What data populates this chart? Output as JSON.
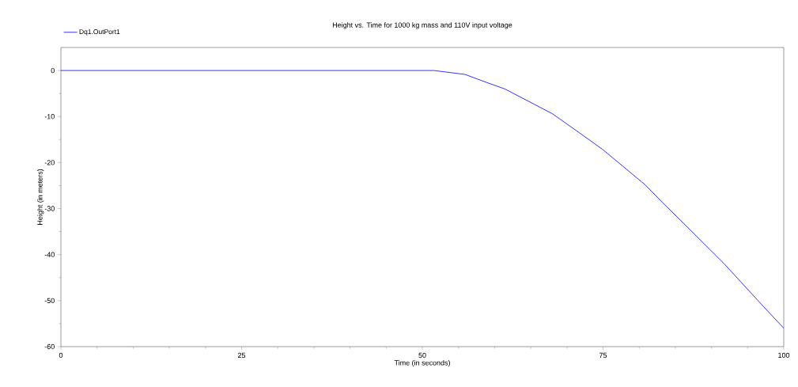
{
  "chart_data": {
    "type": "line",
    "title": "Height vs. Time for 1000 kg mass and 110V input voltage",
    "xlabel": "Time (in seconds)",
    "ylabel": "Height (in meters)",
    "x": [
      0,
      10,
      20,
      30,
      40,
      50,
      51.6,
      55.9,
      58.9,
      61.4,
      68.0,
      71.6,
      74.9,
      80.8,
      83.3,
      86.2,
      91.7,
      97.2,
      100
    ],
    "series": [
      {
        "name": "Dq1.OutPort1",
        "color": "#0000ff",
        "values": [
          0,
          0,
          0,
          0,
          0,
          0,
          0,
          -0.85,
          -2.6,
          -4.0,
          -9.4,
          -13.4,
          -17.1,
          -24.8,
          -28.8,
          -33.3,
          -41.9,
          -51.3,
          -56.0
        ]
      }
    ],
    "xlim": [
      0,
      100
    ],
    "ylim": [
      -60,
      5
    ],
    "xticks": [
      0,
      25,
      50,
      75,
      100
    ],
    "yticks": [
      -60,
      -50,
      -40,
      -30,
      -20,
      -10,
      0
    ],
    "grid": false,
    "legend": "top left",
    "marker": "none",
    "line_style": "solid"
  }
}
